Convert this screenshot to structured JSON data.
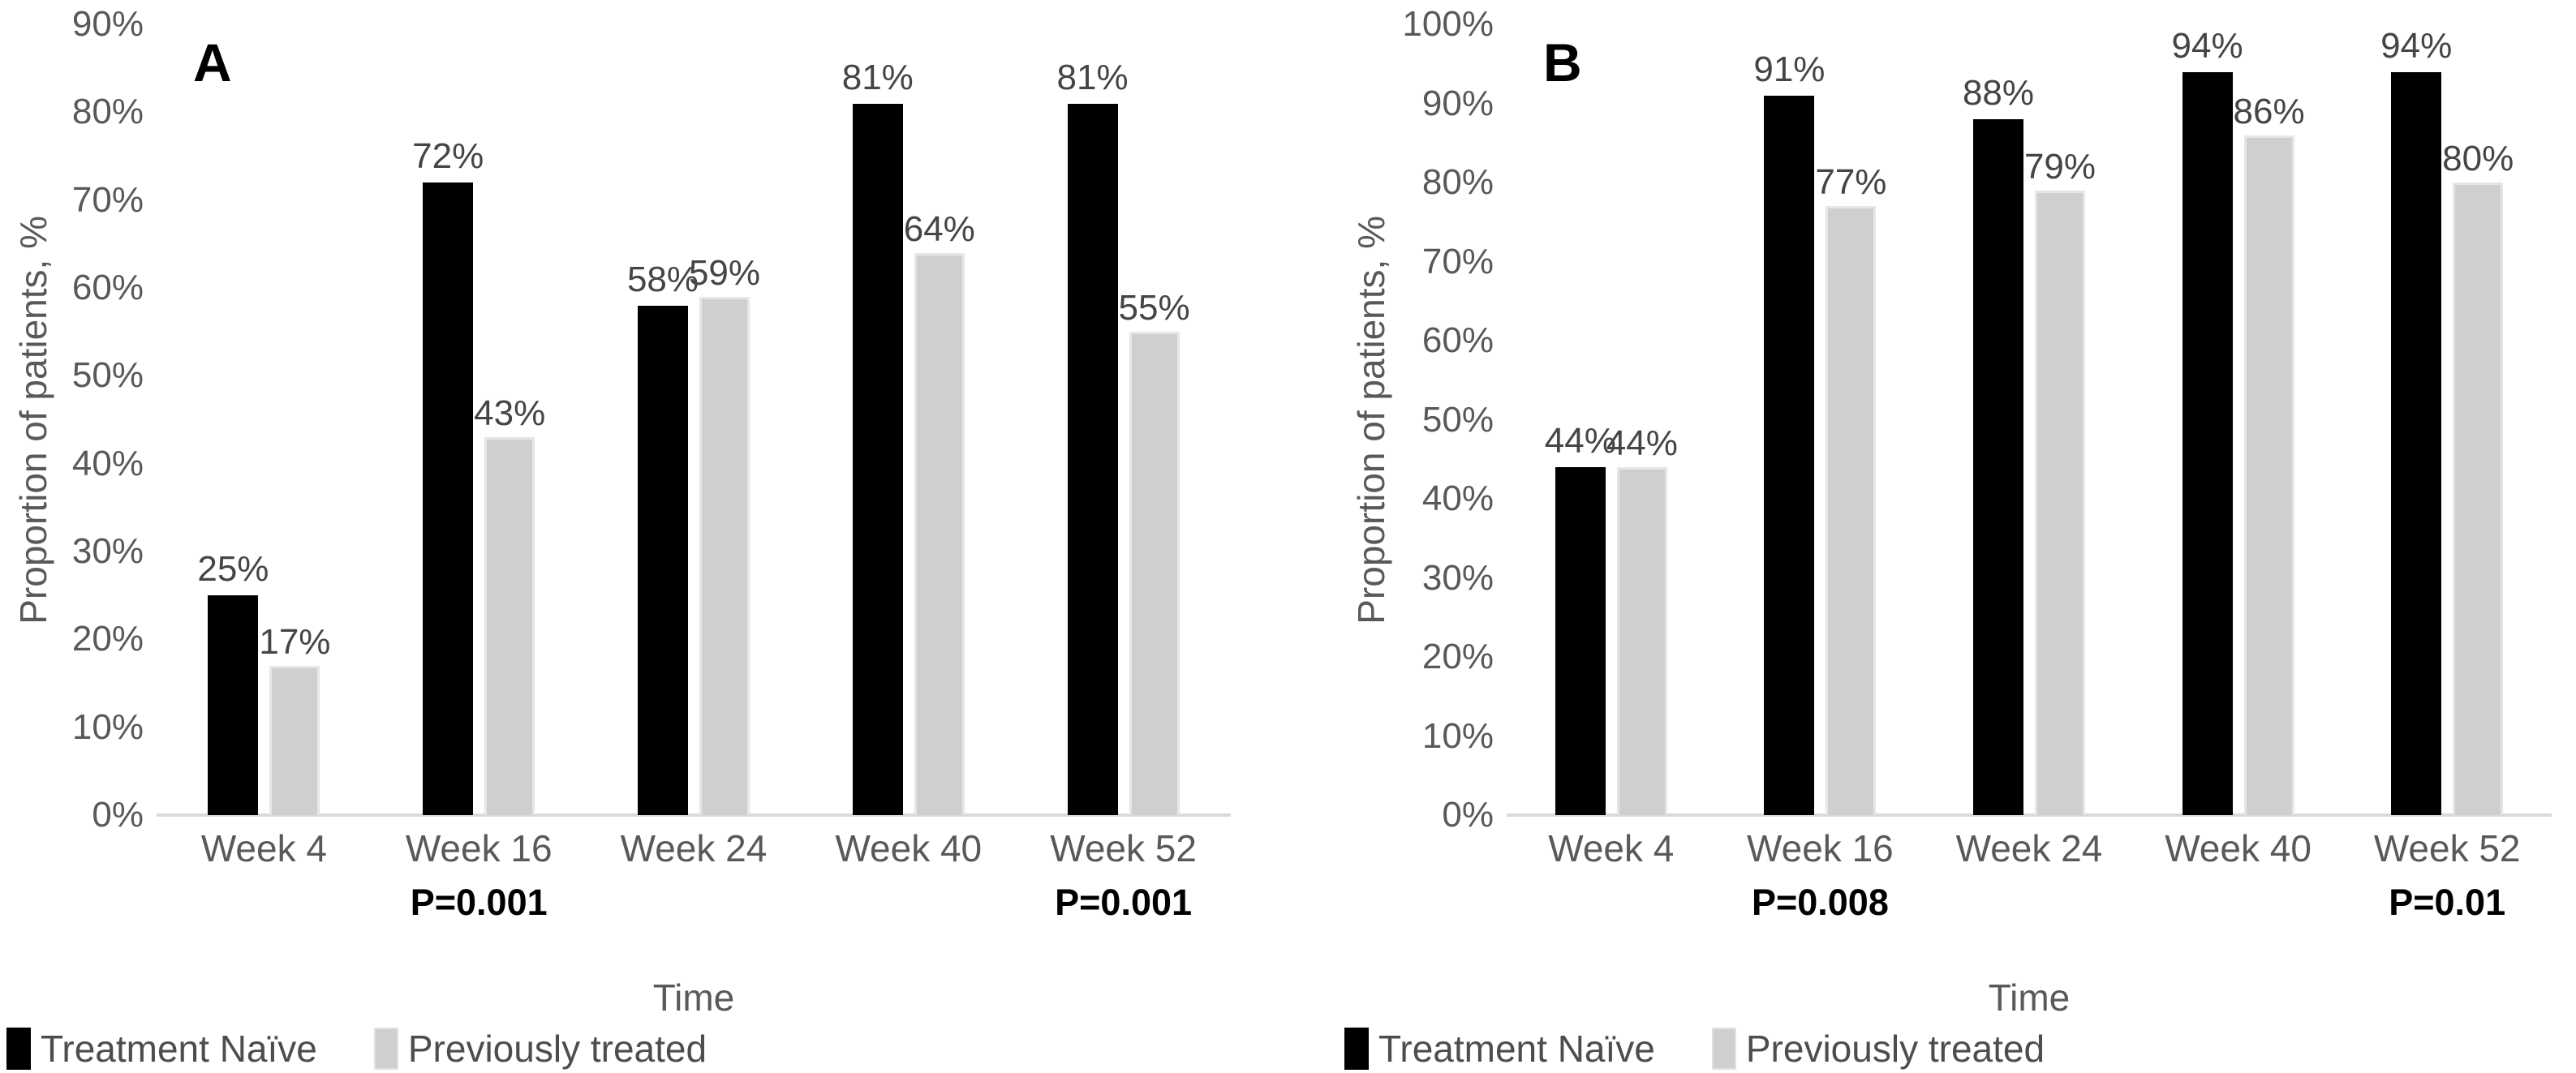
{
  "figure": {
    "description": "Two-panel grouped bar figure comparing proportion of patients over time",
    "panels": [
      "A",
      "B"
    ]
  },
  "colors": {
    "bar_black": "#000000",
    "bar_gray": "#d0cece",
    "bar_gray_edge": "#e7e6e6",
    "axis_text": "#595959",
    "value_label_text": "#454545",
    "p_value_text": "#000000",
    "baseline": "#d9d9d9",
    "background": "#ffffff"
  },
  "chart_data": [
    {
      "id": "A",
      "panel_label": "A",
      "type": "bar",
      "title": "",
      "ylabel": "Proportion of patients, %",
      "xlabel": "Time",
      "ylim": [
        0,
        90
      ],
      "ytick_step": 10,
      "ytick_suffix": "%",
      "value_suffix": "%",
      "grid": false,
      "legend_position": "bottom-left",
      "categories": [
        "Week 4",
        "Week 16",
        "Week 24",
        "Week 40",
        "Week 52"
      ],
      "series": [
        {
          "name": "Treatment Naïve",
          "color": "#000000",
          "values": [
            25,
            72,
            58,
            81,
            81
          ]
        },
        {
          "name": "Previously treated",
          "color": "#d0cece",
          "values": [
            17,
            43,
            59,
            64,
            55
          ]
        }
      ],
      "p_values": [
        "",
        "P=0.001",
        "",
        "",
        "P=0.001"
      ]
    },
    {
      "id": "B",
      "panel_label": "B",
      "type": "bar",
      "title": "",
      "ylabel": "Proportion of patients, %",
      "xlabel": "Time",
      "ylim": [
        0,
        100
      ],
      "ytick_step": 10,
      "ytick_suffix": "%",
      "value_suffix": "%",
      "grid": false,
      "legend_position": "bottom-left",
      "categories": [
        "Week 4",
        "Week 16",
        "Week 24",
        "Week 40",
        "Week 52"
      ],
      "series": [
        {
          "name": "Treatment Naïve",
          "color": "#000000",
          "values": [
            44,
            91,
            88,
            94,
            94
          ]
        },
        {
          "name": "Previously treated",
          "color": "#d0cece",
          "values": [
            44,
            77,
            79,
            86,
            80
          ]
        }
      ],
      "p_values": [
        "",
        "P=0.008",
        "",
        "",
        "P=0.01"
      ]
    }
  ]
}
